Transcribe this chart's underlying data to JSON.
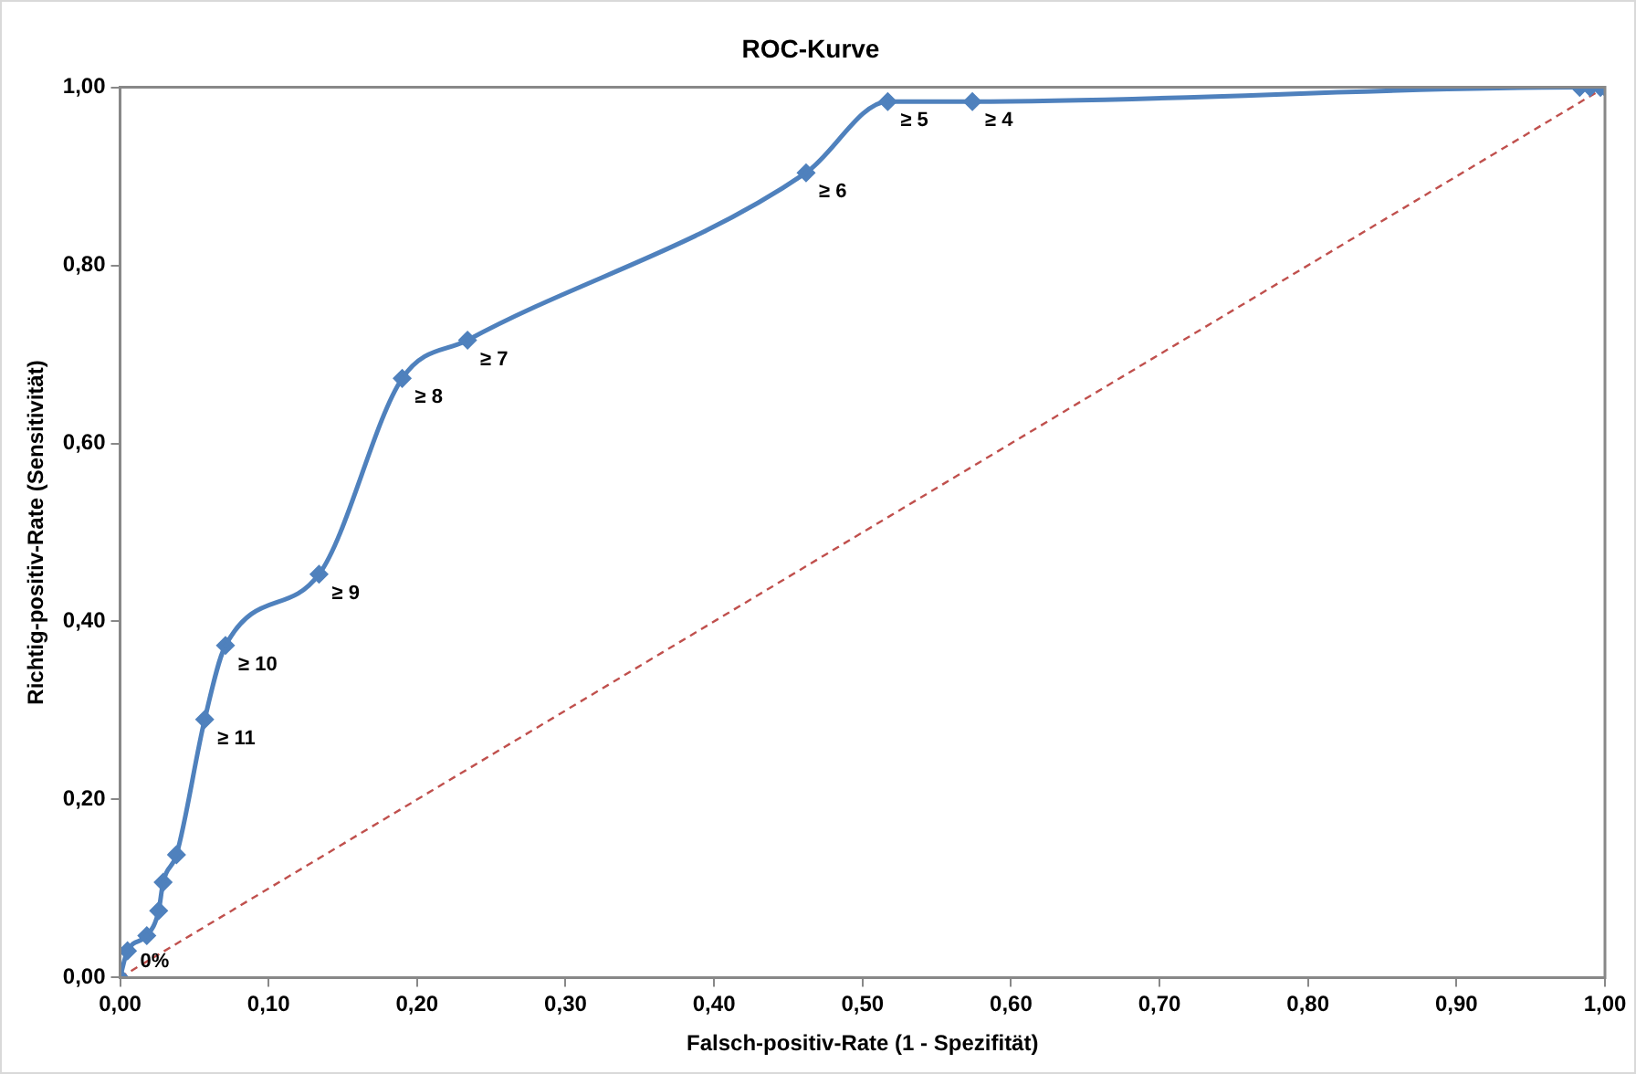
{
  "chart_data": {
    "type": "line",
    "title": "ROC-Kurve",
    "xlabel": "Falsch-positiv-Rate (1 - Spezifität)",
    "ylabel": "Richtig-positiv-Rate (Sensitivität)",
    "series": [
      {
        "type": "line",
        "color": "#4f81bd",
        "marker": "diamond",
        "line_style": "solid",
        "x": [
          0,
          0.005,
          0.018,
          0.026,
          0.029,
          0.038,
          0.057,
          0.071,
          0.134,
          0.19,
          0.234,
          0.462,
          0.517,
          0.574,
          0.983,
          0.99,
          0.997,
          1
        ],
        "values": [
          0,
          0.03,
          0.047,
          0.075,
          0.107,
          0.138,
          0.29,
          0.373,
          0.453,
          0.673,
          0.716,
          0.904,
          0.984,
          0.984,
          1,
          1,
          1,
          1
        ]
      },
      {
        "type": "line",
        "color": "#c0504d",
        "marker": "none",
        "line_style": "dashed",
        "x": [
          0,
          1
        ],
        "values": [
          0,
          1
        ]
      }
    ],
    "xlim": [
      0,
      1
    ],
    "ylim": [
      0,
      1
    ],
    "xticks": [
      {
        "value": 0,
        "label": "0,00"
      },
      {
        "value": 0.1,
        "label": "0,10"
      },
      {
        "value": 0.2,
        "label": "0,20"
      },
      {
        "value": 0.3,
        "label": "0,30"
      },
      {
        "value": 0.4,
        "label": "0,40"
      },
      {
        "value": 0.5,
        "label": "0,50"
      },
      {
        "value": 0.6,
        "label": "0,60"
      },
      {
        "value": 0.7,
        "label": "0,70"
      },
      {
        "value": 0.8,
        "label": "0,80"
      },
      {
        "value": 0.9,
        "label": "0,90"
      },
      {
        "value": 1,
        "label": "1,00"
      }
    ],
    "yticks": [
      {
        "value": 0,
        "label": "0,00"
      },
      {
        "value": 0.2,
        "label": "0,20"
      },
      {
        "value": 0.4,
        "label": "0,40"
      },
      {
        "value": 0.6,
        "label": "0,60"
      },
      {
        "value": 0.8,
        "label": "0,80"
      },
      {
        "value": 1,
        "label": "1,00"
      }
    ],
    "grid": false,
    "legend": false,
    "annotations": [
      {
        "text": "0%",
        "x": 0,
        "y": 0
      },
      {
        "text": "≥ 11",
        "x": 0.057,
        "y": 0.29
      },
      {
        "text": "≥ 10",
        "x": 0.071,
        "y": 0.373
      },
      {
        "text": "≥ 9",
        "x": 0.134,
        "y": 0.453
      },
      {
        "text": "≥ 8",
        "x": 0.19,
        "y": 0.673
      },
      {
        "text": "≥ 7",
        "x": 0.234,
        "y": 0.716
      },
      {
        "text": "≥ 6",
        "x": 0.462,
        "y": 0.904
      },
      {
        "text": "≥ 5",
        "x": 0.517,
        "y": 0.984
      },
      {
        "text": "≥ 4",
        "x": 0.574,
        "y": 0.984
      }
    ]
  }
}
